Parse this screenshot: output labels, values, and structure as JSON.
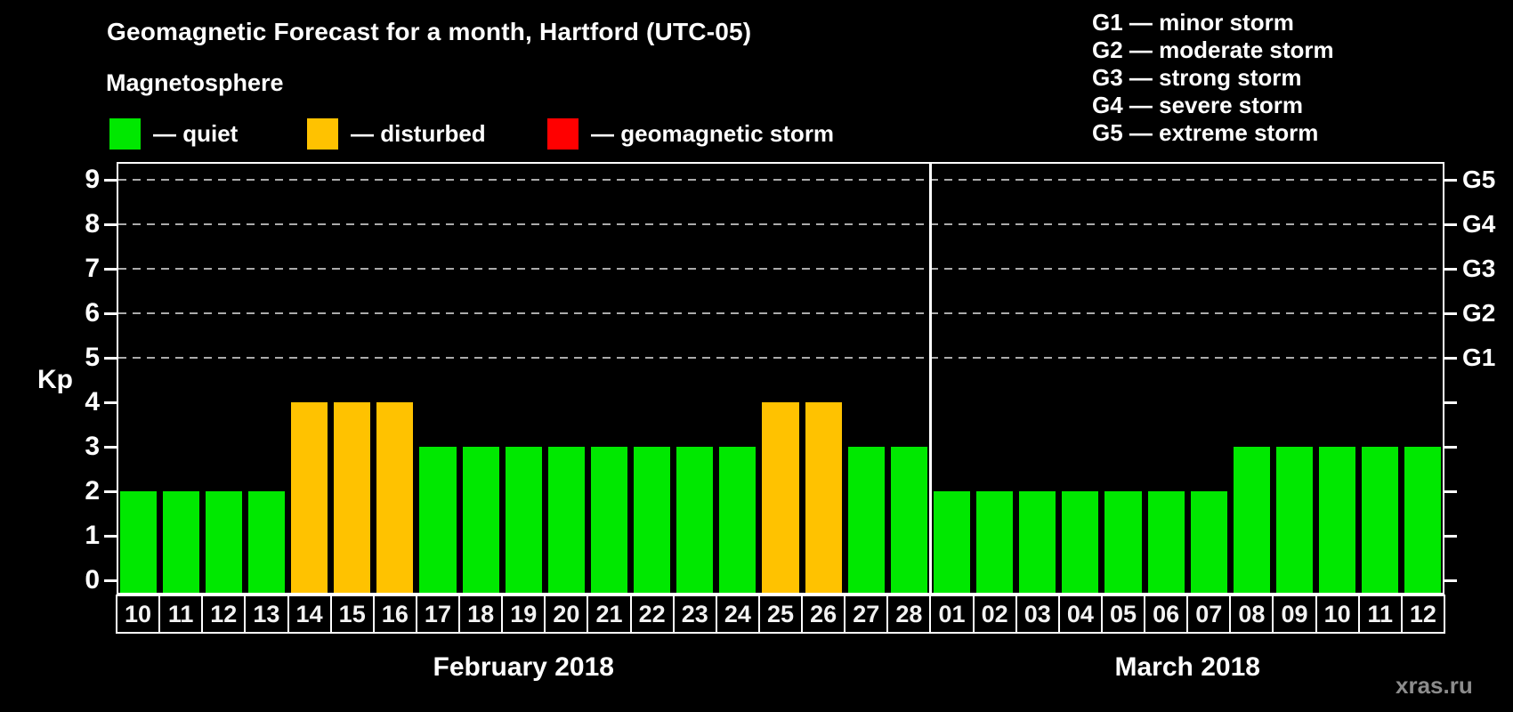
{
  "title": "Geomagnetic Forecast for a month, Hartford (UTC-05)",
  "legend": {
    "heading": "Magnetosphere",
    "items": [
      {
        "name": "quiet",
        "label": "— quiet",
        "color": "#00e800"
      },
      {
        "name": "disturbed",
        "label": "— disturbed",
        "color": "#ffc200"
      },
      {
        "name": "storm",
        "label": "— geomagnetic storm",
        "color": "#ff0000"
      }
    ]
  },
  "storm_scale_legend": [
    "G1 — minor storm",
    "G2 — moderate storm",
    "G3 — strong storm",
    "G4 — severe storm",
    "G5 — extreme storm"
  ],
  "watermark": "xras.ru",
  "chart_data": {
    "type": "bar",
    "title": "Geomagnetic Forecast for a month, Hartford (UTC-05)",
    "ylabel": "Kp",
    "ylim": [
      0,
      9
    ],
    "yticks": [
      0,
      1,
      2,
      3,
      4,
      5,
      6,
      7,
      8,
      9
    ],
    "grid": "dashed horizontal lines at Kp 5-9 only",
    "gridlines": [
      5,
      6,
      7,
      8,
      9
    ],
    "right_axis": [
      {
        "kp": 5,
        "label": "G1"
      },
      {
        "kp": 6,
        "label": "G2"
      },
      {
        "kp": 7,
        "label": "G3"
      },
      {
        "kp": 8,
        "label": "G4"
      },
      {
        "kp": 9,
        "label": "G5"
      }
    ],
    "status_colors": {
      "quiet": "#00e800",
      "disturbed": "#ffc200",
      "storm": "#ff0000"
    },
    "months": [
      {
        "label": "February 2018",
        "categories": [
          "10",
          "11",
          "12",
          "13",
          "14",
          "15",
          "16",
          "17",
          "18",
          "19",
          "20",
          "21",
          "22",
          "23",
          "24",
          "25",
          "26",
          "27",
          "28"
        ],
        "values": [
          2,
          2,
          2,
          2,
          4,
          4,
          4,
          3,
          3,
          3,
          3,
          3,
          3,
          3,
          3,
          4,
          4,
          3,
          3
        ],
        "status": [
          "quiet",
          "quiet",
          "quiet",
          "quiet",
          "disturbed",
          "disturbed",
          "disturbed",
          "quiet",
          "quiet",
          "quiet",
          "quiet",
          "quiet",
          "quiet",
          "quiet",
          "quiet",
          "disturbed",
          "disturbed",
          "quiet",
          "quiet"
        ]
      },
      {
        "label": "March 2018",
        "categories": [
          "01",
          "02",
          "03",
          "04",
          "05",
          "06",
          "07",
          "08",
          "09",
          "10",
          "11",
          "12"
        ],
        "values": [
          2,
          2,
          2,
          2,
          2,
          2,
          2,
          3,
          3,
          3,
          3,
          3
        ],
        "status": [
          "quiet",
          "quiet",
          "quiet",
          "quiet",
          "quiet",
          "quiet",
          "quiet",
          "quiet",
          "quiet",
          "quiet",
          "quiet",
          "quiet"
        ]
      }
    ]
  }
}
